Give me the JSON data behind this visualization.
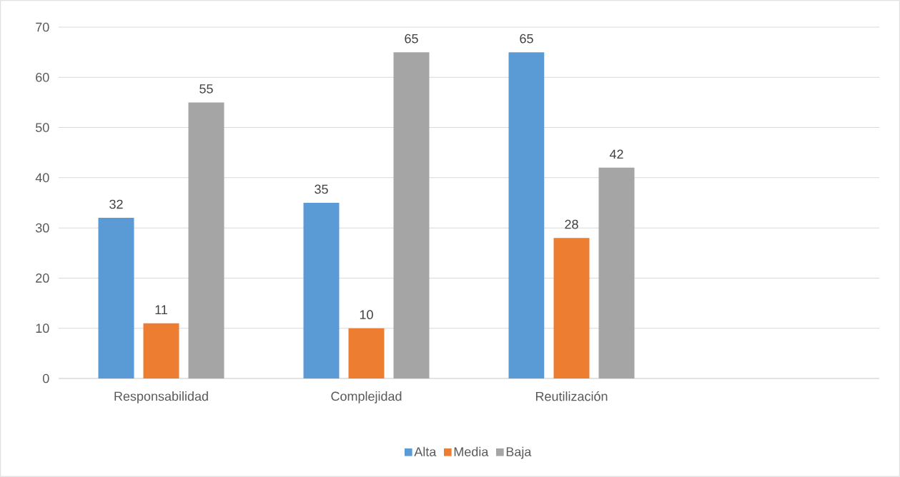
{
  "chart_data": {
    "type": "bar",
    "categories": [
      "Responsabilidad",
      "Complejidad",
      "Reutilización",
      null
    ],
    "series": [
      {
        "name": "Alta",
        "color": "#5b9bd5",
        "values": [
          32,
          35,
          65,
          null
        ]
      },
      {
        "name": "Media",
        "color": "#ed7d31",
        "values": [
          11,
          10,
          28,
          null
        ]
      },
      {
        "name": "Baja",
        "color": "#a5a5a5",
        "values": [
          55,
          65,
          42,
          null
        ]
      }
    ],
    "ylim": [
      0,
      70
    ],
    "yticks": [
      0,
      10,
      20,
      30,
      40,
      50,
      60,
      70
    ],
    "grid": "y",
    "legend": "bottom",
    "data_labels": true
  }
}
